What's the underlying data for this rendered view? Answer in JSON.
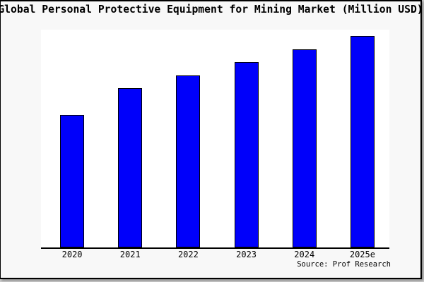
{
  "window": {
    "background": "#f8f8f8",
    "outer_background": "#cdcdcd",
    "border_color": "#000000"
  },
  "chart_data": {
    "type": "bar",
    "title": "Global Personal Protective Equipment for Mining Market (Million USD)",
    "categories": [
      "2020",
      "2021",
      "2022",
      "2023",
      "2024",
      "2025e"
    ],
    "values": [
      61,
      73,
      79,
      85,
      91,
      97
    ],
    "ylim": [
      0,
      100
    ],
    "xlabel": "",
    "ylabel": "",
    "grid": false,
    "legend": false,
    "y_axis_shown": false,
    "value_note": "values estimated as percent of plot height; no y-axis labels shown",
    "bar_color": "#0000fa",
    "bar_edge_color": "#000000",
    "plot_background": "#ffffff"
  },
  "footer": {
    "source_label": "Source: Prof Research"
  }
}
